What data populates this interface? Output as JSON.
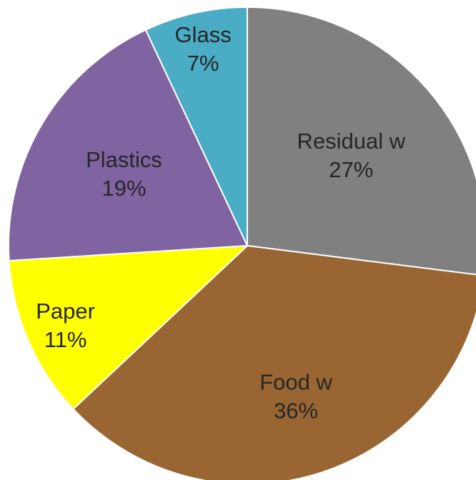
{
  "chart_data": {
    "type": "pie",
    "title": "",
    "slices": [
      {
        "category": "Residual w",
        "value": 27,
        "label": "27%",
        "color": "#808080"
      },
      {
        "category": "Food w",
        "value": 36,
        "label": "36%",
        "color": "#996633"
      },
      {
        "category": "Paper",
        "value": 11,
        "label": "11%",
        "color": "#ffff00"
      },
      {
        "category": "Plastics",
        "value": 19,
        "label": "19%",
        "color": "#8064a2"
      },
      {
        "category": "Glass",
        "value": 7,
        "label": "7%",
        "color": "#4bacc6"
      }
    ],
    "start": "12 o'clock",
    "direction": "clockwise",
    "legend": "none",
    "labels": "inside, category name above percentage"
  }
}
